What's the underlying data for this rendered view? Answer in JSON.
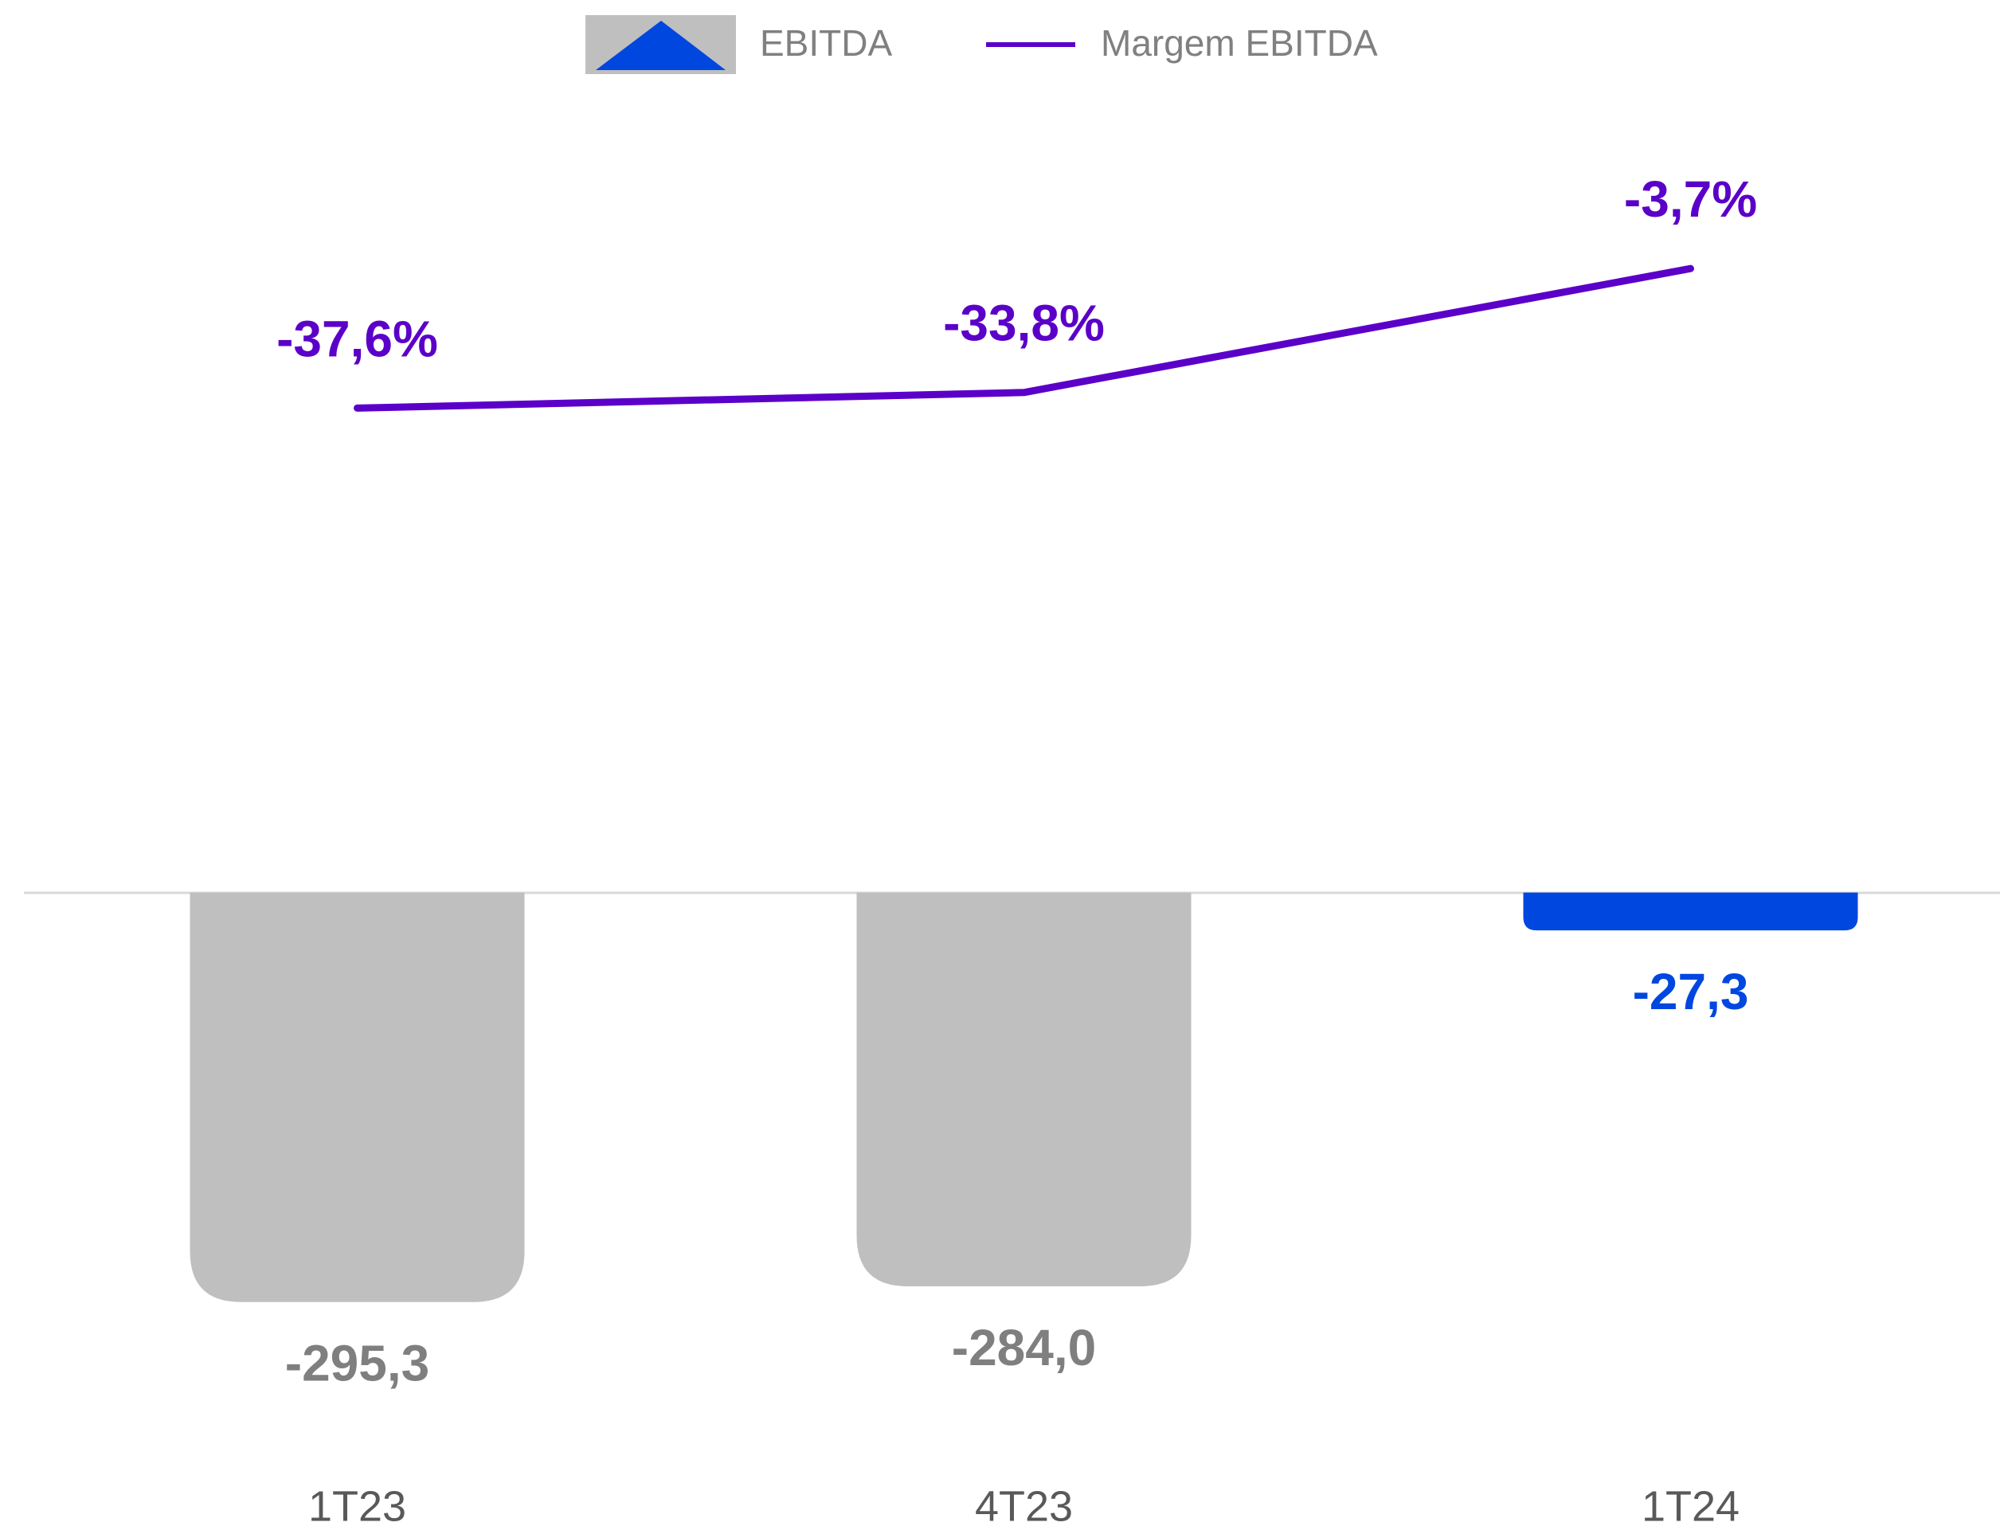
{
  "chart_data": {
    "type": "bar-line",
    "categories": [
      "1T23",
      "4T23",
      "1T24"
    ],
    "series": [
      {
        "name": "EBITDA",
        "type": "bar",
        "color": "#bfbfbf",
        "colors": [
          "#bfbfbf",
          "#bfbfbf",
          "#0047e0"
        ],
        "label_colors": [
          "#7f7f7f",
          "#7f7f7f",
          "#0047e0"
        ],
        "values": [
          -295.3,
          -284.0,
          -27.3
        ],
        "value_labels": [
          "-295,3",
          "-284,0",
          "-27,3"
        ]
      },
      {
        "name": "Margem EBITDA",
        "type": "line",
        "axis": "y2",
        "color": "#5b00c8",
        "values": [
          -37.6,
          -33.8,
          -3.7
        ],
        "value_labels": [
          "-37,6%",
          "-33,8%",
          "-3,7%"
        ]
      }
    ],
    "ylim": [
      -400,
      550
    ],
    "y2lim": [
      -290,
      30
    ],
    "legend": "top"
  }
}
